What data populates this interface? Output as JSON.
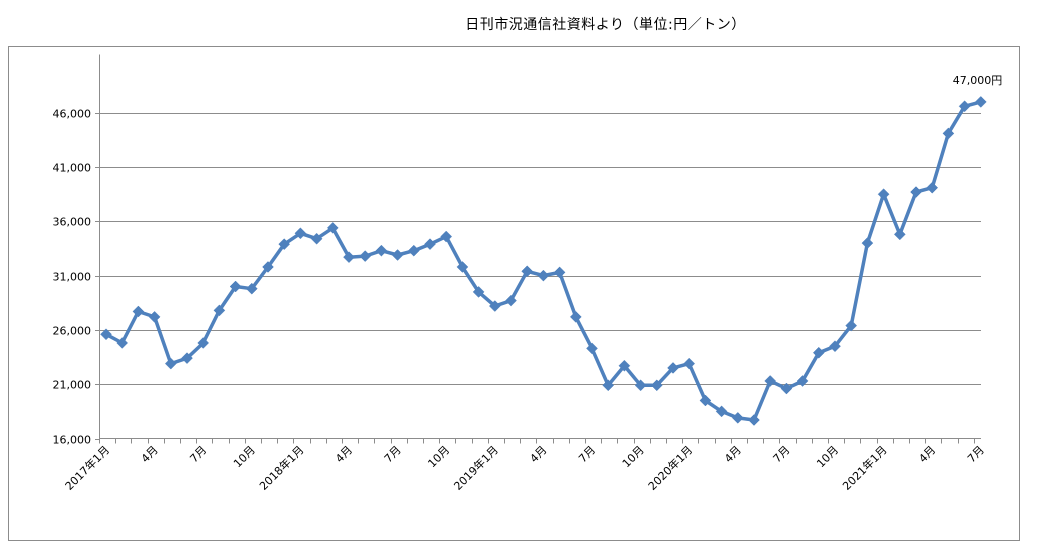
{
  "source_note": "日刊市況通信社資料より（単位:円／トン）",
  "chart_data": {
    "type": "line",
    "title": "",
    "xlabel": "",
    "ylabel": "",
    "ylim": [
      16000,
      51000
    ],
    "yticks": [
      16000,
      21000,
      26000,
      31000,
      36000,
      41000,
      46000
    ],
    "ytick_labels": [
      "16,000",
      "21,000",
      "26,000",
      "31,000",
      "36,000",
      "41,000",
      "46,000"
    ],
    "grid": true,
    "line_color": "#4f81bd",
    "x_tick_labels": [
      {
        "index": 0,
        "label": "2017年1月"
      },
      {
        "index": 3,
        "label": "4月"
      },
      {
        "index": 6,
        "label": "7月"
      },
      {
        "index": 9,
        "label": "10月"
      },
      {
        "index": 12,
        "label": "2018年1月"
      },
      {
        "index": 15,
        "label": "4月"
      },
      {
        "index": 18,
        "label": "7月"
      },
      {
        "index": 21,
        "label": "10月"
      },
      {
        "index": 24,
        "label": "2019年1月"
      },
      {
        "index": 27,
        "label": "4月"
      },
      {
        "index": 30,
        "label": "7月"
      },
      {
        "index": 33,
        "label": "10月"
      },
      {
        "index": 36,
        "label": "2020年1月"
      },
      {
        "index": 39,
        "label": "4月"
      },
      {
        "index": 42,
        "label": "7月"
      },
      {
        "index": 45,
        "label": "10月"
      },
      {
        "index": 48,
        "label": "2021年1月"
      },
      {
        "index": 51,
        "label": "4月"
      },
      {
        "index": 54,
        "label": "7月"
      }
    ],
    "series": [
      {
        "values": [
          25600,
          24800,
          27700,
          27200,
          22900,
          23400,
          24800,
          27800,
          30000,
          29800,
          31800,
          33900,
          34900,
          34400,
          35400,
          32700,
          32800,
          33300,
          32900,
          33300,
          33900,
          34600,
          31800,
          29500,
          28200,
          28700,
          31400,
          31000,
          31300,
          27200,
          24300,
          20900,
          22700,
          20900,
          20900,
          22500,
          22900,
          19500,
          18500,
          17900,
          17700,
          21300,
          20600,
          21300,
          23900,
          24500,
          26400,
          34000,
          38500,
          34800,
          38700,
          39100,
          44100,
          46600,
          47000
        ]
      }
    ],
    "annotations": [
      {
        "index": 54,
        "text": "47,000円"
      }
    ]
  }
}
